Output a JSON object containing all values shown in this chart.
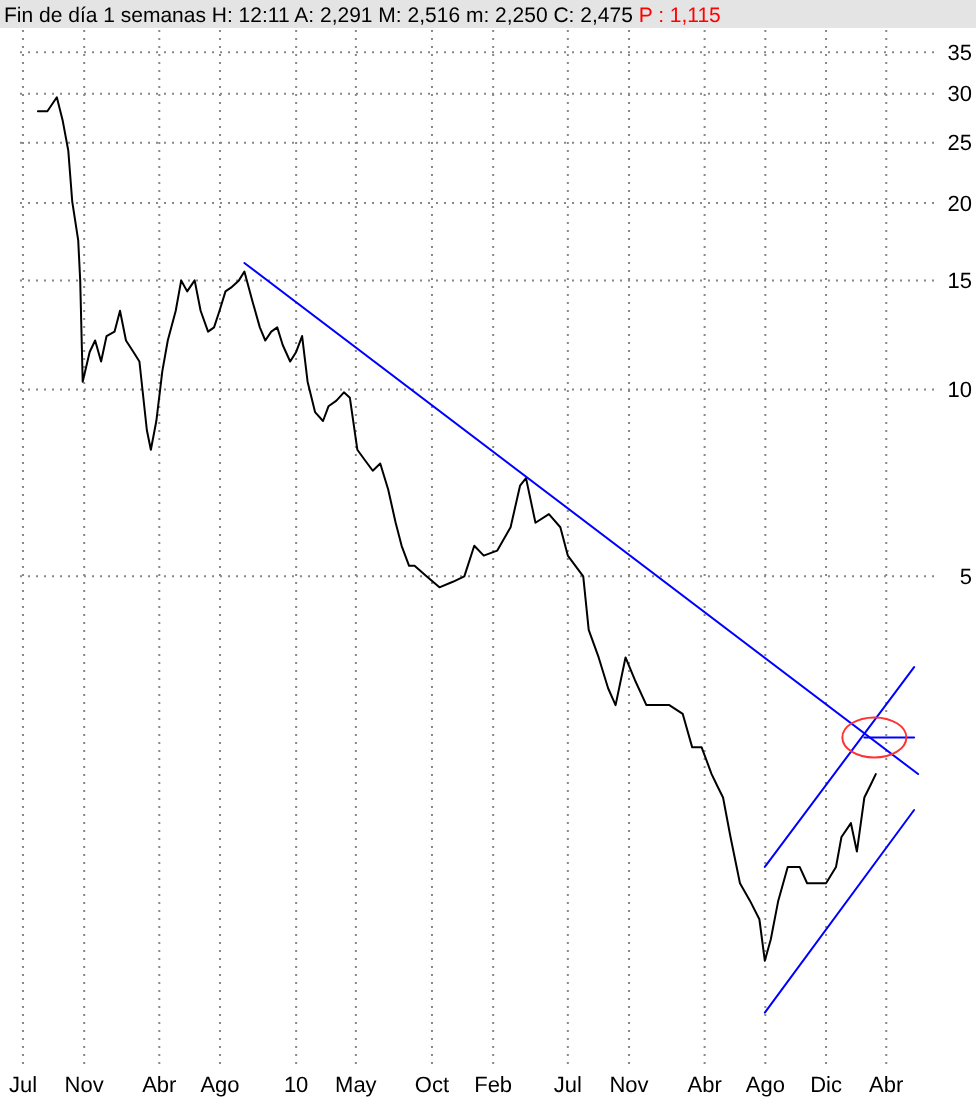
{
  "chart_data": {
    "type": "line",
    "title": "Fin de día 1 semanas H: 12:11 A: 2,291 M: 2,516 m: 2,250 C: 2,475",
    "subtitle": "P : 1,115",
    "log": true,
    "grid": true,
    "xlim": [
      "2008-06-25",
      "2013-07-10"
    ],
    "xticks": [
      {
        "value": "2008-07-01",
        "label": "Jul"
      },
      {
        "value": "2008-11-01",
        "label": "Nov"
      },
      {
        "value": "2009-04-01",
        "label": "Abr"
      },
      {
        "value": "2009-08-01",
        "label": "Ago"
      },
      {
        "value": "2010-01-01",
        "label": "10"
      },
      {
        "value": "2010-05-01",
        "label": "May"
      },
      {
        "value": "2010-10-01",
        "label": "Oct"
      },
      {
        "value": "2011-02-01",
        "label": "Feb"
      },
      {
        "value": "2011-07-01",
        "label": "Jul"
      },
      {
        "value": "2011-11-01",
        "label": "Nov"
      },
      {
        "value": "2012-04-01",
        "label": "Abr"
      },
      {
        "value": "2012-08-01",
        "label": "Ago"
      },
      {
        "value": "2012-12-01",
        "label": "Dic"
      },
      {
        "value": "2013-04-01",
        "label": "Abr"
      }
    ],
    "ylim": [
      0.8,
      38
    ],
    "yticks": [
      5,
      10,
      15,
      20,
      25,
      30,
      35
    ],
    "series": [
      {
        "color": "#000000",
        "x": [
          "2008-07-31",
          "2008-08-19",
          "2008-09-07",
          "2008-09-19",
          "2008-09-30",
          "2008-10-08",
          "2008-10-20",
          "2008-10-24",
          "2008-10-29",
          "2008-11-12",
          "2008-11-23",
          "2008-12-05",
          "2008-12-16",
          "2009-01-01",
          "2009-01-12",
          "2009-01-24",
          "2009-02-08",
          "2009-02-20",
          "2009-03-07",
          "2009-03-15",
          "2009-03-26",
          "2009-04-07",
          "2009-04-18",
          "2009-05-04",
          "2009-05-15",
          "2009-05-27",
          "2009-06-11",
          "2009-06-23",
          "2009-07-08",
          "2009-07-20",
          "2009-07-31",
          "2009-08-12",
          "2009-08-23",
          "2009-09-08",
          "2009-09-19",
          "2009-10-05",
          "2009-10-20",
          "2009-10-31",
          "2009-11-12",
          "2009-11-24",
          "2009-12-05",
          "2009-12-20",
          "2010-01-01",
          "2010-01-13",
          "2010-01-24",
          "2010-02-08",
          "2010-02-24",
          "2010-03-07",
          "2010-03-23",
          "2010-04-07",
          "2010-04-19",
          "2010-05-04",
          "2010-05-19",
          "2010-06-04",
          "2010-06-19",
          "2010-07-05",
          "2010-07-20",
          "2010-08-01",
          "2010-08-16",
          "2010-08-27",
          "2010-09-20",
          "2010-10-16",
          "2010-11-12",
          "2010-12-05",
          "2010-12-25",
          "2011-01-13",
          "2011-02-09",
          "2011-03-08",
          "2011-03-27",
          "2011-04-08",
          "2011-04-27",
          "2011-05-24",
          "2011-06-16",
          "2011-07-01",
          "2011-08-01",
          "2011-08-12",
          "2011-09-01",
          "2011-09-20",
          "2011-10-05",
          "2011-10-25",
          "2011-11-13",
          "2011-12-06",
          "2011-12-25",
          "2012-01-21",
          "2012-02-17",
          "2012-03-07",
          "2012-03-26",
          "2012-04-15",
          "2012-04-26",
          "2012-05-08",
          "2012-05-23",
          "2012-06-11",
          "2012-07-01",
          "2012-07-20",
          "2012-07-31",
          "2012-08-12",
          "2012-08-27",
          "2012-09-15",
          "2012-10-09",
          "2012-10-24",
          "2012-11-12",
          "2012-12-01",
          "2012-12-21",
          "2013-01-01",
          "2013-01-20",
          "2013-02-01",
          "2013-02-16",
          "2013-02-28",
          "2013-03-11"
        ],
        "values": [
          28.1,
          28.1,
          29.6,
          27.1,
          24.3,
          20.1,
          17.4,
          15.0,
          10.3,
          11.5,
          12.0,
          11.1,
          12.2,
          12.4,
          13.4,
          12.0,
          11.5,
          11.1,
          8.6,
          8.0,
          8.9,
          10.7,
          12.0,
          13.4,
          15.0,
          14.4,
          15.0,
          13.4,
          12.4,
          12.6,
          13.4,
          14.4,
          14.6,
          15.0,
          15.5,
          13.9,
          12.6,
          12.0,
          12.4,
          12.6,
          11.8,
          11.1,
          11.5,
          12.2,
          10.3,
          9.2,
          8.9,
          9.4,
          9.6,
          9.9,
          9.7,
          8.0,
          7.7,
          7.4,
          7.6,
          6.9,
          6.1,
          5.6,
          5.2,
          5.2,
          5.0,
          4.8,
          4.9,
          5.0,
          5.6,
          5.4,
          5.5,
          6.0,
          7.0,
          7.2,
          6.1,
          6.3,
          6.0,
          5.4,
          5.0,
          4.1,
          3.7,
          3.3,
          3.1,
          3.7,
          3.4,
          3.1,
          3.1,
          3.1,
          3.0,
          2.65,
          2.65,
          2.4,
          2.3,
          2.2,
          1.9,
          1.6,
          1.5,
          1.4,
          1.2,
          1.3,
          1.5,
          1.7,
          1.7,
          1.6,
          1.6,
          1.6,
          1.7,
          1.9,
          2.0,
          1.8,
          2.2,
          2.3,
          2.4
        ]
      },
      {
        "color": "#0000ff",
        "x": [
          "2009-09-19",
          "2013-06-04"
        ],
        "values": [
          16.0,
          2.4
        ]
      },
      {
        "color": "#0000ff",
        "x": [
          "2012-07-31",
          "2013-05-27"
        ],
        "values": [
          1.7,
          3.57
        ]
      },
      {
        "color": "#0000ff",
        "x": [
          "2012-07-31",
          "2013-05-27"
        ],
        "values": [
          0.99,
          2.1
        ]
      },
      {
        "color": "#0000ff",
        "x": [
          "2013-02-16",
          "2013-05-27"
        ],
        "values": [
          2.75,
          2.75
        ]
      }
    ]
  }
}
